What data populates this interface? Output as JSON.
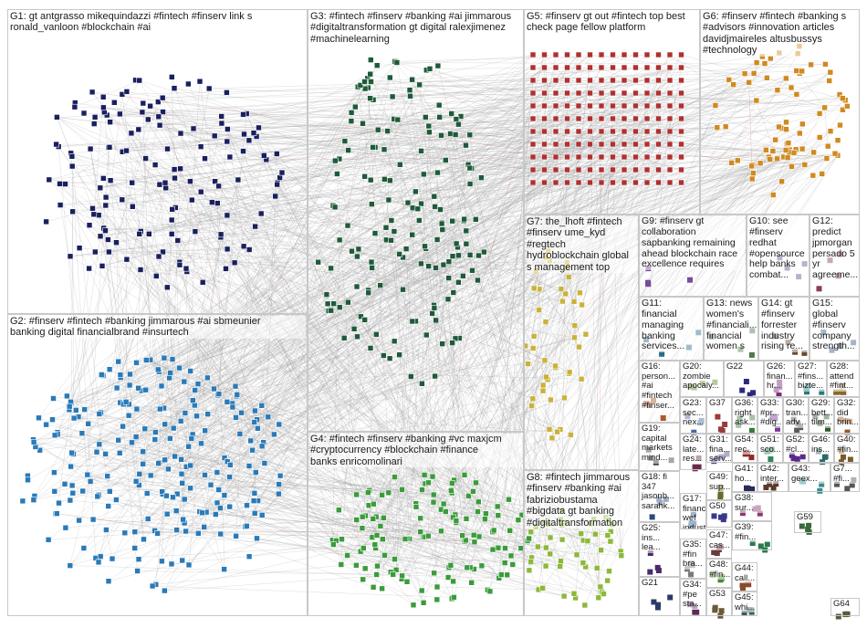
{
  "groups": [
    {
      "id": "G1",
      "label": "G1: gt antgrasso mikequindazzi #fintech #finserv link s\nronald_vanloon #blockchain #ai",
      "color": "#1a1f5e"
    },
    {
      "id": "G2",
      "label": "G2: #finserv #fintech #banking jimmarous #ai sbmeunier\nbanking digital financialbrand #insurtech",
      "color": "#2a7ab8"
    },
    {
      "id": "G3",
      "label": "G3: #fintech #finserv #banking #ai jimmarous\n#digitaltransformation gt digital ralexjimenez\n#machinelearning",
      "color": "#1f5a3a"
    },
    {
      "id": "G4",
      "label": "G4: #fintech #finserv #banking #vc maxjcm\n#cryptocurrency #blockchain #finance\nbanks enricomolinari",
      "color": "#3b9b3b"
    },
    {
      "id": "G5",
      "label": "G5: #finserv gt out #fintech top best\ncheck page fellow platform",
      "color": "#b03030"
    },
    {
      "id": "G6",
      "label": "G6: #finserv #fintech #banking s\n#advisors #innovation articles\ndavidjmaireles altusbussys\n#technology",
      "color": "#d08a20"
    },
    {
      "id": "G7",
      "label": "G7: the_lhoft #fintech\n#finserv ume_kyd\n#regtech\nhydroblockchain global\ns management top",
      "color": "#c9b23a"
    },
    {
      "id": "G8",
      "label": "G8: #fintech jimmarous\n#finserv #banking #ai\nfabriziobustama\n#bigdata gt banking\n#digitaltransformation",
      "color": "#8db83a"
    },
    {
      "id": "G9",
      "label": "G9: #finserv gt\ncollaboration\nsapbanking remaining\nahead blockchain race\nexcellence requires",
      "color": "#7a4a9a"
    },
    {
      "id": "G10",
      "label": "G10: see\n#finserv\nredhat\n#opensource\nhelp banks\ncombat...",
      "color": "#5a5a9a"
    },
    {
      "id": "G11",
      "label": "G11:\nfinancial\nmanaging\nbanking\nservices...",
      "color": "#2a6a8a"
    },
    {
      "id": "G12",
      "label": "G12:\npredict\njpmorgan\npersado 5\nyr\nagreeme...",
      "color": "#8a3a5a"
    },
    {
      "id": "G13",
      "label": "G13: news\nwomen's\n#financiali...\nfinancial\nwomen s",
      "color": "#4a7a4a"
    },
    {
      "id": "G14",
      "label": "G14: gt\n#finserv\nforrester\nindustry\nrising re...",
      "color": "#6a4a2a"
    },
    {
      "id": "G15",
      "label": "G15:\nglobal\n#finserv\ncompany\nstrength...",
      "color": "#3a5a8a"
    },
    {
      "id": "G16",
      "label": "G16:\nperson...\n#ai\n#fintech\n#finser...",
      "color": "#aa5a2a"
    },
    {
      "id": "G20",
      "label": "G20:\nzombie\napocaly...",
      "color": "#5a8a2a"
    },
    {
      "id": "G22",
      "label": "G22",
      "color": "#2a2a7a"
    },
    {
      "id": "G26",
      "label": "G26:\nfinan...\nhr...",
      "color": "#7a2a7a"
    },
    {
      "id": "G27",
      "label": "G27:\n#fins...\nbizte...",
      "color": "#2a7a7a"
    },
    {
      "id": "G28",
      "label": "G28:\nattend\n#fint...",
      "color": "#8a6a2a"
    },
    {
      "id": "G19",
      "label": "G19:\ncapital\nmarkets\nmind...",
      "color": "#3a3a3a"
    },
    {
      "id": "G23",
      "label": "G23:\nsec...\nnex...",
      "color": "#4a6a9a"
    },
    {
      "id": "G37",
      "label": "G37",
      "color": "#9a3a3a"
    },
    {
      "id": "G36",
      "label": "G36:\nright\nask...",
      "color": "#3a7a3a"
    },
    {
      "id": "G33",
      "label": "G33:\n#pr...\n#dig...",
      "color": "#7a3a9a"
    },
    {
      "id": "G30",
      "label": "G30:\ntran...\nadv...",
      "color": "#5a5a5a"
    },
    {
      "id": "G29",
      "label": "G29:\nbett...\ntilm...",
      "color": "#2a5a2a"
    },
    {
      "id": "G32",
      "label": "G32:\ndid\nbrin...",
      "color": "#9a5a2a"
    },
    {
      "id": "G18",
      "label": "G18: fi\n347\njasonb...\nsarahk...",
      "color": "#2a4a7a"
    },
    {
      "id": "G24",
      "label": "G24:\nlate...\nres...",
      "color": "#6a2a4a"
    },
    {
      "id": "G31",
      "label": "G31:\nfina...\nserv...",
      "color": "#4a4a8a"
    },
    {
      "id": "G54",
      "label": "G54:\nrec...",
      "color": "#8a2a2a"
    },
    {
      "id": "G51",
      "label": "G51:\nsco...",
      "color": "#2a8a5a"
    },
    {
      "id": "G52",
      "label": "G52:\n#cl...",
      "color": "#5a2a8a"
    },
    {
      "id": "G46",
      "label": "G46:\nins...",
      "color": "#2a6a6a"
    },
    {
      "id": "G40",
      "label": "G40:\n#fin...",
      "color": "#7a5a2a"
    },
    {
      "id": "G17",
      "label": "G17:\nfinanci...\nwef\nindustr...",
      "color": "#4a2a6a"
    },
    {
      "id": "G25",
      "label": "G25:\nins...\nlea...",
      "color": "#2a5a8a"
    },
    {
      "id": "G49",
      "label": "G49:\nsup...",
      "color": "#6a6a2a"
    },
    {
      "id": "G41",
      "label": "G41:\nho...",
      "color": "#2a2a5a"
    },
    {
      "id": "G42",
      "label": "G42:\ninter...",
      "color": "#5a3a2a"
    },
    {
      "id": "G43",
      "label": "G43:\ngeex...",
      "color": "#3a8a8a"
    },
    {
      "id": "G7b",
      "label": "G7...\n#fi...",
      "color": "#8a8a3a"
    },
    {
      "id": "G50",
      "label": "G50",
      "color": "#3a3a8a"
    },
    {
      "id": "G38",
      "label": "G38:\nsur...",
      "color": "#8a3a6a"
    },
    {
      "id": "G59",
      "label": "G59",
      "color": "#3a6a3a"
    },
    {
      "id": "G47",
      "label": "G47:\ncas...",
      "color": "#6a3a3a"
    },
    {
      "id": "G39",
      "label": "G39:\n#fin...",
      "color": "#2a7a4a"
    },
    {
      "id": "G35",
      "label": "G35:\n#fin\nbra...",
      "color": "#7a7a7a"
    },
    {
      "id": "G48",
      "label": "G48:\n#fin...",
      "color": "#4a8a2a"
    },
    {
      "id": "G44",
      "label": "G44:\ncall...",
      "color": "#8a4a2a"
    },
    {
      "id": "G21",
      "label": "G21",
      "color": "#2a3a6a"
    },
    {
      "id": "G34",
      "label": "G34:\n#pe\nsta...",
      "color": "#5a2a5a"
    },
    {
      "id": "G53",
      "label": "G53",
      "color": "#6a5a3a"
    },
    {
      "id": "G45",
      "label": "G45:\nwhi...",
      "color": "#3a5a5a"
    },
    {
      "id": "G64",
      "label": "G64",
      "color": "#5a5a3a"
    }
  ]
}
